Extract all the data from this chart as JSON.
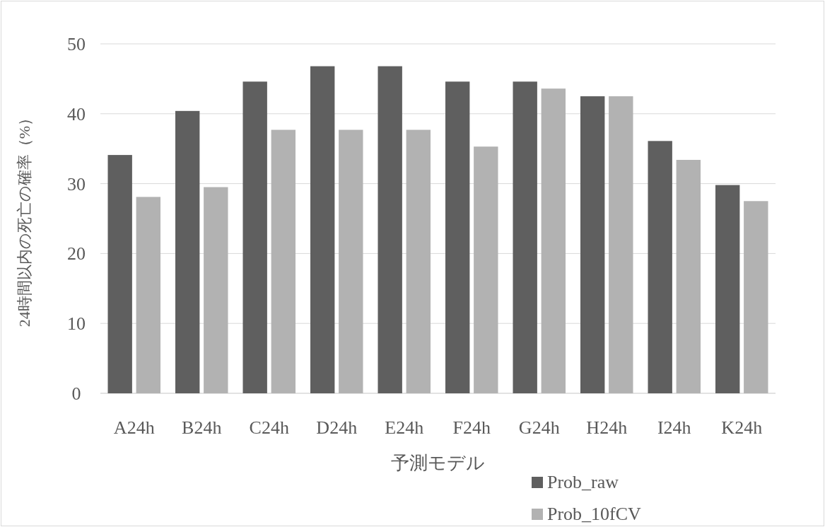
{
  "chart_data": {
    "type": "bar",
    "xlabel": "予測モデル",
    "ylabel": "24時間以内の死亡の確率（%）",
    "categories": [
      "A24h",
      "B24h",
      "C24h",
      "D24h",
      "E24h",
      "F24h",
      "G24h",
      "H24h",
      "I24h",
      "K24h"
    ],
    "series": [
      {
        "name": "Prob_raw",
        "color": "#5f5f5f",
        "values": [
          34.1,
          40.4,
          44.6,
          46.8,
          46.8,
          44.6,
          44.6,
          42.5,
          36.1,
          29.8
        ]
      },
      {
        "name": "Prob_10fCV",
        "color": "#b2b2b2",
        "values": [
          28.1,
          29.5,
          37.7,
          37.7,
          37.7,
          35.3,
          43.6,
          42.5,
          33.4,
          27.5
        ]
      }
    ],
    "ylim": [
      0,
      50
    ],
    "yticks": [
      0,
      10,
      20,
      30,
      40,
      50
    ],
    "grid": "y",
    "legend": "bottom right"
  }
}
